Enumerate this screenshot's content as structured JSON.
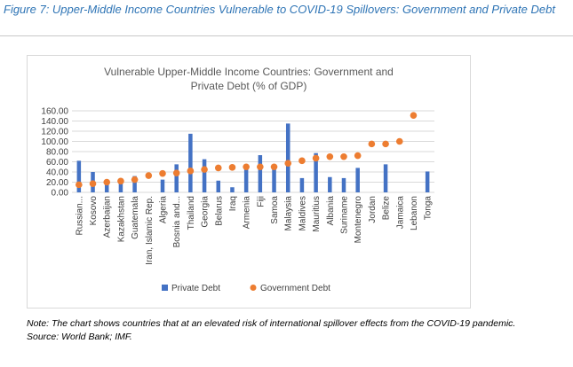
{
  "figure": {
    "title": "Figure 7: Upper-Middle Income Countries Vulnerable to COVID-19 Spillovers: Government and Private Debt",
    "note": "Note: The chart shows countries that at an elevated risk of international spillover effects from the COVID-19 pandemic.",
    "source": "Source: World Bank; IMF."
  },
  "colors": {
    "title": "#2e74b5",
    "private_debt": "#4472c4",
    "government_debt": "#ed7d31",
    "gridline": "#d9d9d9",
    "axis_text": "#404040"
  },
  "chart_data": {
    "type": "bar",
    "title_line1": "Vulnerable Upper-Middle Income Countries: Government and",
    "title_line2": "Private Debt (% of GDP)",
    "categories": [
      "Russian...",
      "Kosovo",
      "Azerbaijan",
      "Kazakhstan",
      "Guatemala",
      "Iran, Islamic Rep.",
      "Algeria",
      "Bosnia and...",
      "Thailand",
      "Georgia",
      "Belarus",
      "Iraq",
      "Armenia",
      "Fiji",
      "Samoa",
      "Malaysia",
      "Maldives",
      "Mauritius",
      "Albania",
      "Suriname",
      "Montenegro",
      "Jordan",
      "Belize",
      "Jamaica",
      "Lebanon",
      "Tonga"
    ],
    "series": [
      {
        "name": "Private Debt",
        "kind": "bar",
        "values": [
          62,
          40,
          18,
          22,
          32,
          null,
          25,
          55,
          115,
          65,
          23,
          10,
          48,
          73,
          50,
          135,
          28,
          77,
          30,
          28,
          48,
          null,
          55,
          null,
          null,
          41
        ]
      },
      {
        "name": "Government Debt",
        "kind": "marker",
        "values": [
          15,
          17,
          20,
          22,
          25,
          33,
          37,
          38,
          42,
          45,
          48,
          49,
          50,
          50,
          50,
          57,
          62,
          67,
          70,
          70,
          72,
          95,
          95,
          100,
          151,
          null
        ]
      }
    ],
    "yticks": [
      "160.00",
      "140.00",
      "120.00",
      "100.00",
      "80.00",
      "60.00",
      "40.00",
      "20.00",
      "0.00"
    ],
    "ylim": [
      0,
      160
    ],
    "grid": true,
    "legend_position": "bottom"
  }
}
